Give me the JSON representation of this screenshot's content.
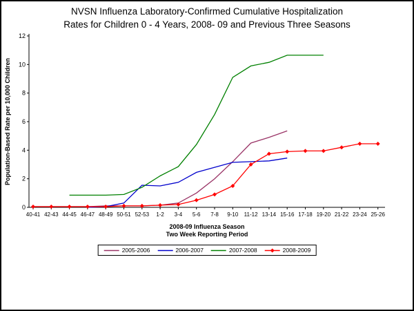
{
  "header": {
    "title_line1": "NVSN Influenza Laboratory-Confirmed Cumulative Hospitalization",
    "title_line2": "Rates for Children 0 - 4 Years, 2008- 09 and Previous Three Seasons"
  },
  "chart_data": {
    "type": "line",
    "title": "NVSN Influenza Laboratory-Confirmed Cumulative Hospitalization Rates for Children 0 - 4 Years, 2008- 09 and Previous Three Seasons",
    "ylabel": "Population-Based Rate per 10,000 Children",
    "xlabel_line1": "2008-09 Influenza Season",
    "xlabel_line2": "Two Week Reporting Period",
    "ylim": [
      0,
      12
    ],
    "ytick_interval": 2,
    "yticks": [
      0,
      2,
      4,
      6,
      8,
      10,
      12
    ],
    "grid": false,
    "legend_position": "bottom",
    "categories": [
      "40-41",
      "42-43",
      "44-45",
      "46-47",
      "48-49",
      "50-51",
      "52-53",
      "1-2",
      "3-4",
      "5-6",
      "7-8",
      "9-10",
      "11-12",
      "13-14",
      "15-16",
      "17-18",
      "19-20",
      "21-22",
      "23-24",
      "25-26"
    ],
    "series": [
      {
        "name": "2005-2006",
        "color": "#993366",
        "marker": false,
        "values": [
          0.05,
          0.05,
          0.05,
          0.05,
          0.1,
          0.1,
          0.1,
          0.15,
          0.3,
          1.0,
          2.0,
          3.2,
          4.5,
          4.9,
          5.35,
          null,
          null,
          null,
          null,
          null
        ]
      },
      {
        "name": "2006-2007",
        "color": "#0000CC",
        "marker": false,
        "values": [
          null,
          null,
          null,
          0.0,
          0.05,
          0.3,
          1.55,
          1.5,
          1.75,
          2.45,
          2.8,
          3.15,
          3.2,
          3.25,
          3.45,
          null,
          null,
          null,
          null,
          null
        ]
      },
      {
        "name": "2007-2008",
        "color": "#008000",
        "marker": false,
        "values": [
          null,
          null,
          0.85,
          0.85,
          0.85,
          0.9,
          1.4,
          2.2,
          2.85,
          4.4,
          6.5,
          9.1,
          9.9,
          10.15,
          10.65,
          10.65,
          10.65,
          null,
          null,
          null
        ]
      },
      {
        "name": "2008-2009",
        "color": "#FF0000",
        "marker": true,
        "values": [
          0.05,
          0.05,
          0.05,
          0.05,
          0.05,
          0.1,
          0.1,
          0.15,
          0.2,
          0.5,
          0.9,
          1.5,
          3.0,
          3.75,
          3.9,
          3.95,
          3.95,
          4.2,
          4.45,
          4.45
        ]
      }
    ]
  }
}
